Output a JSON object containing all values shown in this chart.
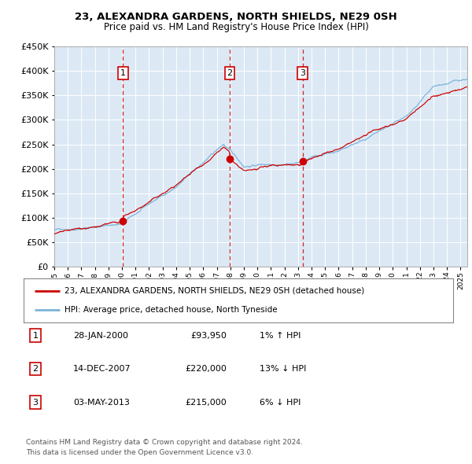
{
  "title": "23, ALEXANDRA GARDENS, NORTH SHIELDS, NE29 0SH",
  "subtitle": "Price paid vs. HM Land Registry's House Price Index (HPI)",
  "legend_line1": "23, ALEXANDRA GARDENS, NORTH SHIELDS, NE29 0SH (detached house)",
  "legend_line2": "HPI: Average price, detached house, North Tyneside",
  "sale_dates": [
    2000.08,
    2007.96,
    2013.34
  ],
  "sale_prices": [
    93950,
    220000,
    215000
  ],
  "sale_labels": [
    "1",
    "2",
    "3"
  ],
  "annotations": [
    {
      "num": "1",
      "date": "28-JAN-2000",
      "price": "£93,950",
      "hpi": "1% ↑ HPI"
    },
    {
      "num": "2",
      "date": "14-DEC-2007",
      "price": "£220,000",
      "hpi": "13% ↓ HPI"
    },
    {
      "num": "3",
      "date": "03-MAY-2013",
      "price": "£215,000",
      "hpi": "6% ↓ HPI"
    }
  ],
  "footnote1": "Contains HM Land Registry data © Crown copyright and database right 2024.",
  "footnote2": "This data is licensed under the Open Government Licence v3.0.",
  "hpi_color": "#7ab4d8",
  "price_color": "#cc0000",
  "bg_color": "#dce9f5",
  "grid_color": "#ffffff",
  "vline_color": "#cc0000",
  "ylim_min": 0,
  "ylim_max": 450000,
  "xlim_start": 1995.0,
  "xlim_end": 2025.5
}
